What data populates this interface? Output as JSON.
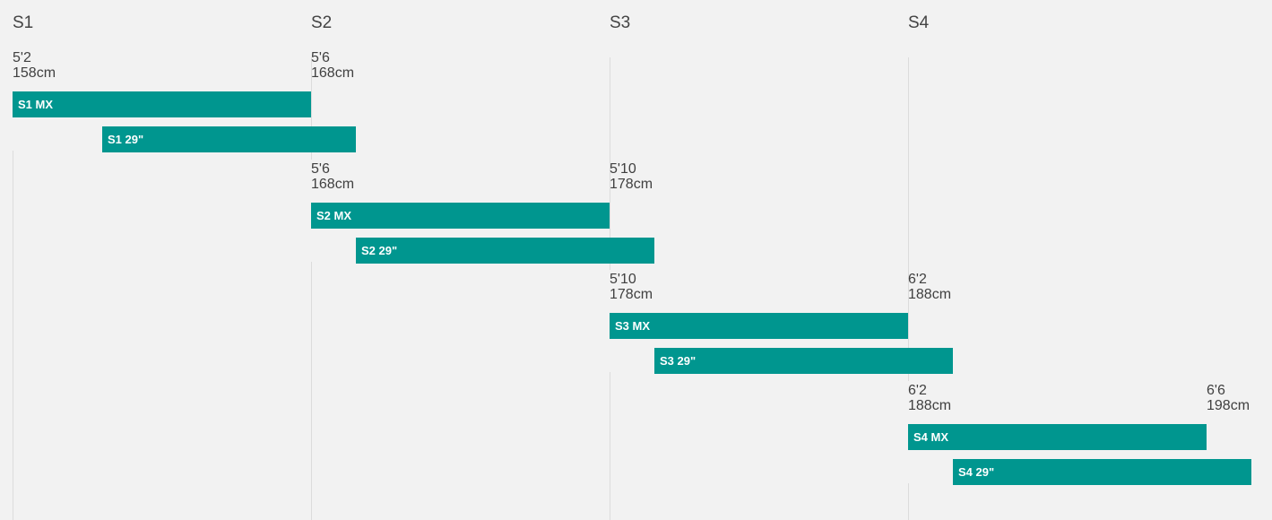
{
  "chart_data": {
    "type": "bar",
    "orientation": "horizontal-range",
    "x_columns": [
      "S1",
      "S2",
      "S3",
      "S4"
    ],
    "series": [
      {
        "group": "S1",
        "start_label": {
          "feet": "5'2",
          "cm": "158cm"
        },
        "end_label": {
          "feet": "5'6",
          "cm": "168cm"
        },
        "bars": [
          {
            "name": "S1 MX",
            "start": 158,
            "end": 168
          },
          {
            "name": "S1 29\"",
            "start": 161,
            "end": 169.5
          }
        ]
      },
      {
        "group": "S2",
        "start_label": {
          "feet": "5'6",
          "cm": "168cm"
        },
        "end_label": {
          "feet": "5'10",
          "cm": "178cm"
        },
        "bars": [
          {
            "name": "S2 MX",
            "start": 168,
            "end": 178
          },
          {
            "name": "S2 29\"",
            "start": 169.5,
            "end": 179.5
          }
        ]
      },
      {
        "group": "S3",
        "start_label": {
          "feet": "5'10",
          "cm": "178cm"
        },
        "end_label": {
          "feet": "6'2",
          "cm": "188cm"
        },
        "bars": [
          {
            "name": "S3 MX",
            "start": 178,
            "end": 188
          },
          {
            "name": "S3 29\"",
            "start": 179.5,
            "end": 189.5
          }
        ]
      },
      {
        "group": "S4",
        "start_label": {
          "feet": "6'2",
          "cm": "188cm"
        },
        "end_label": {
          "feet": "6'6",
          "cm": "198cm"
        },
        "bars": [
          {
            "name": "S4 MX",
            "start": 188,
            "end": 198
          },
          {
            "name": "S4 29\"",
            "start": 189.5,
            "end": 199.5
          }
        ]
      }
    ],
    "grid": true
  }
}
